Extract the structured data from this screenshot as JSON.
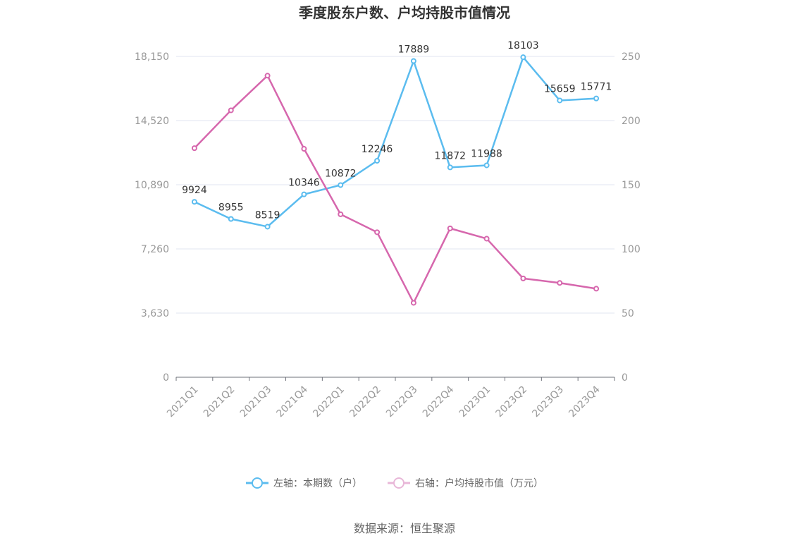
{
  "chart_data": {
    "type": "line",
    "title": "季度股东户数、户均持股市值情况",
    "categories": [
      "2021Q1",
      "2021Q2",
      "2021Q3",
      "2021Q4",
      "2022Q1",
      "2022Q2",
      "2022Q3",
      "2022Q4",
      "2023Q1",
      "2023Q2",
      "2023Q3",
      "2023Q4"
    ],
    "left_axis": {
      "ylim": [
        0,
        18150
      ],
      "ticks": [
        "0",
        "3,630",
        "7,260",
        "10,890",
        "14,520",
        "18,150"
      ]
    },
    "right_axis": {
      "ylim": [
        0,
        250
      ],
      "ticks": [
        "0",
        "50",
        "100",
        "150",
        "200",
        "250"
      ]
    },
    "series": [
      {
        "name": "左轴：本期数（户）",
        "axis": "left",
        "color": "#5bbcef",
        "values": [
          9924,
          8955,
          8519,
          10346,
          10872,
          12246,
          17889,
          11872,
          11988,
          18103,
          15659,
          15771
        ],
        "labels": [
          "9924",
          "8955",
          "8519",
          "10346",
          "10872",
          "12246",
          "17889",
          "11872",
          "11988",
          "18103",
          "15659",
          "15771"
        ]
      },
      {
        "name": "右轴：户均持股市值（万元）",
        "axis": "right",
        "color": "#d667ad",
        "values": [
          178.5,
          208,
          235,
          178,
          127,
          113,
          58,
          116,
          108,
          77,
          73.5,
          69
        ]
      }
    ],
    "legend_position": "bottom",
    "grid": true
  },
  "source": "数据来源：恒生聚源"
}
